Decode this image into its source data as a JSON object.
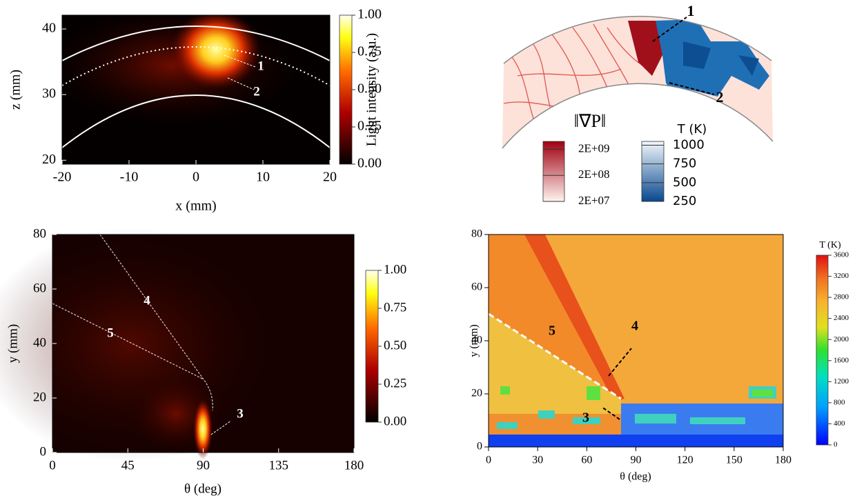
{
  "chart_data": [
    {
      "type": "heatmap",
      "xlabel": "x (mm)",
      "ylabel": "z (mm)",
      "xlim": [
        -20,
        20
      ],
      "ylim": [
        19.4,
        42.1
      ],
      "xticks": [
        -20,
        -10,
        0,
        10,
        20
      ],
      "yticks": [
        20,
        30,
        40
      ],
      "colorbars": [
        {
          "label": "Light intensity (a.u.)",
          "lim": [
            0,
            1
          ],
          "ticks": [
            {
              "value": 0,
              "label": "0.00"
            },
            {
              "value": 0.25,
              "label": "0.25"
            },
            {
              "value": 0.5,
              "label": "0.50"
            },
            {
              "value": 0.75,
              "label": "0.75"
            },
            {
              "value": 1,
              "label": "1.00"
            }
          ]
        }
      ],
      "annotations": [
        "1",
        "2"
      ]
    },
    {
      "type": "ring",
      "colorbars": [
        {
          "label": "‖∇P‖",
          "log": true,
          "lim": [
            20000000,
            4000000000
          ],
          "ticks": [
            {
              "value": 2000000000,
              "label": "2E+09"
            },
            {
              "value": 200000000,
              "label": "2E+08"
            },
            {
              "value": 20000000,
              "label": "2E+07"
            }
          ]
        },
        {
          "label": "T (K)",
          "lim": [
            250,
            1050
          ],
          "ticks": [
            1000,
            750,
            500,
            250
          ]
        }
      ],
      "annotations": [
        "1",
        "2"
      ]
    },
    {
      "type": "heatmap",
      "xlabel": "θ (deg)",
      "ylabel": "y (mm)",
      "xlim": [
        0,
        180
      ],
      "ylim": [
        0,
        80
      ],
      "xticks": [
        0,
        45,
        90,
        135,
        180
      ],
      "yticks": [
        0,
        20,
        40,
        60,
        80
      ],
      "colorbars": [
        {
          "lim": [
            0,
            1
          ],
          "ticks": [
            {
              "value": 0,
              "label": "0.00"
            },
            {
              "value": 0.25,
              "label": "0.25"
            },
            {
              "value": 0.5,
              "label": "0.50"
            },
            {
              "value": 0.75,
              "label": "0.75"
            },
            {
              "value": 1,
              "label": "1.00"
            }
          ]
        }
      ],
      "annotations": [
        "3",
        "4",
        "5"
      ]
    },
    {
      "type": "heatmap",
      "xlabel": "θ (deg)",
      "ylabel": "y (mm)",
      "xlim": [
        0,
        180
      ],
      "ylim": [
        0,
        80
      ],
      "xticks": [
        0,
        30,
        60,
        90,
        120,
        150,
        180
      ],
      "yticks": [
        0,
        20,
        40,
        60,
        80
      ],
      "colorbars": [
        {
          "label": "T (K)",
          "lim": [
            0,
            3600
          ],
          "ticks": [
            0,
            400,
            800,
            1200,
            1600,
            2000,
            2400,
            2800,
            3200,
            3600
          ]
        }
      ],
      "annotations": [
        "3",
        "4",
        "5"
      ]
    }
  ]
}
